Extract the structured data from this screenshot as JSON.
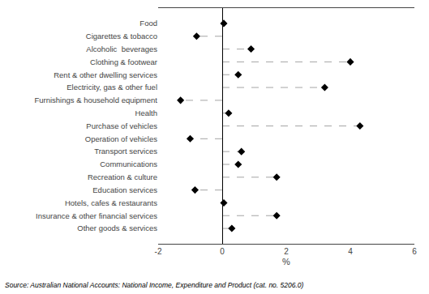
{
  "chart_data": {
    "type": "lollipop",
    "orientation": "horizontal",
    "categories": [
      "Food",
      "Cigarettes & tobacco",
      "Alcoholic  beverages",
      "Clothing & footwear",
      "Rent & other dwelling services",
      "Electricity, gas & other fuel",
      "Furnishings & household equipment",
      "Health",
      "Purchase of vehicles",
      "Operation of vehicles",
      "Transport services",
      "Communications",
      "Recreation & culture",
      "Education services",
      "Hotels, cafes & restaurants",
      "Insurance & other financial services",
      "Other goods & services"
    ],
    "values": [
      0.05,
      -0.8,
      0.9,
      4.0,
      0.5,
      3.2,
      -1.3,
      0.2,
      4.3,
      -1.0,
      0.6,
      0.5,
      1.7,
      -0.85,
      0.05,
      1.7,
      0.3
    ],
    "xlabel": "%",
    "xlim": [
      -2,
      6
    ],
    "xticks": [
      -2,
      0,
      2,
      4,
      6
    ],
    "color": "#000000",
    "marker": "diamond",
    "line_style": "dashed",
    "grid": false,
    "annotations": [
      "Source: Australian National Accounts: National Income, Expenditure and Product (cat. no. 5206.0)"
    ]
  }
}
